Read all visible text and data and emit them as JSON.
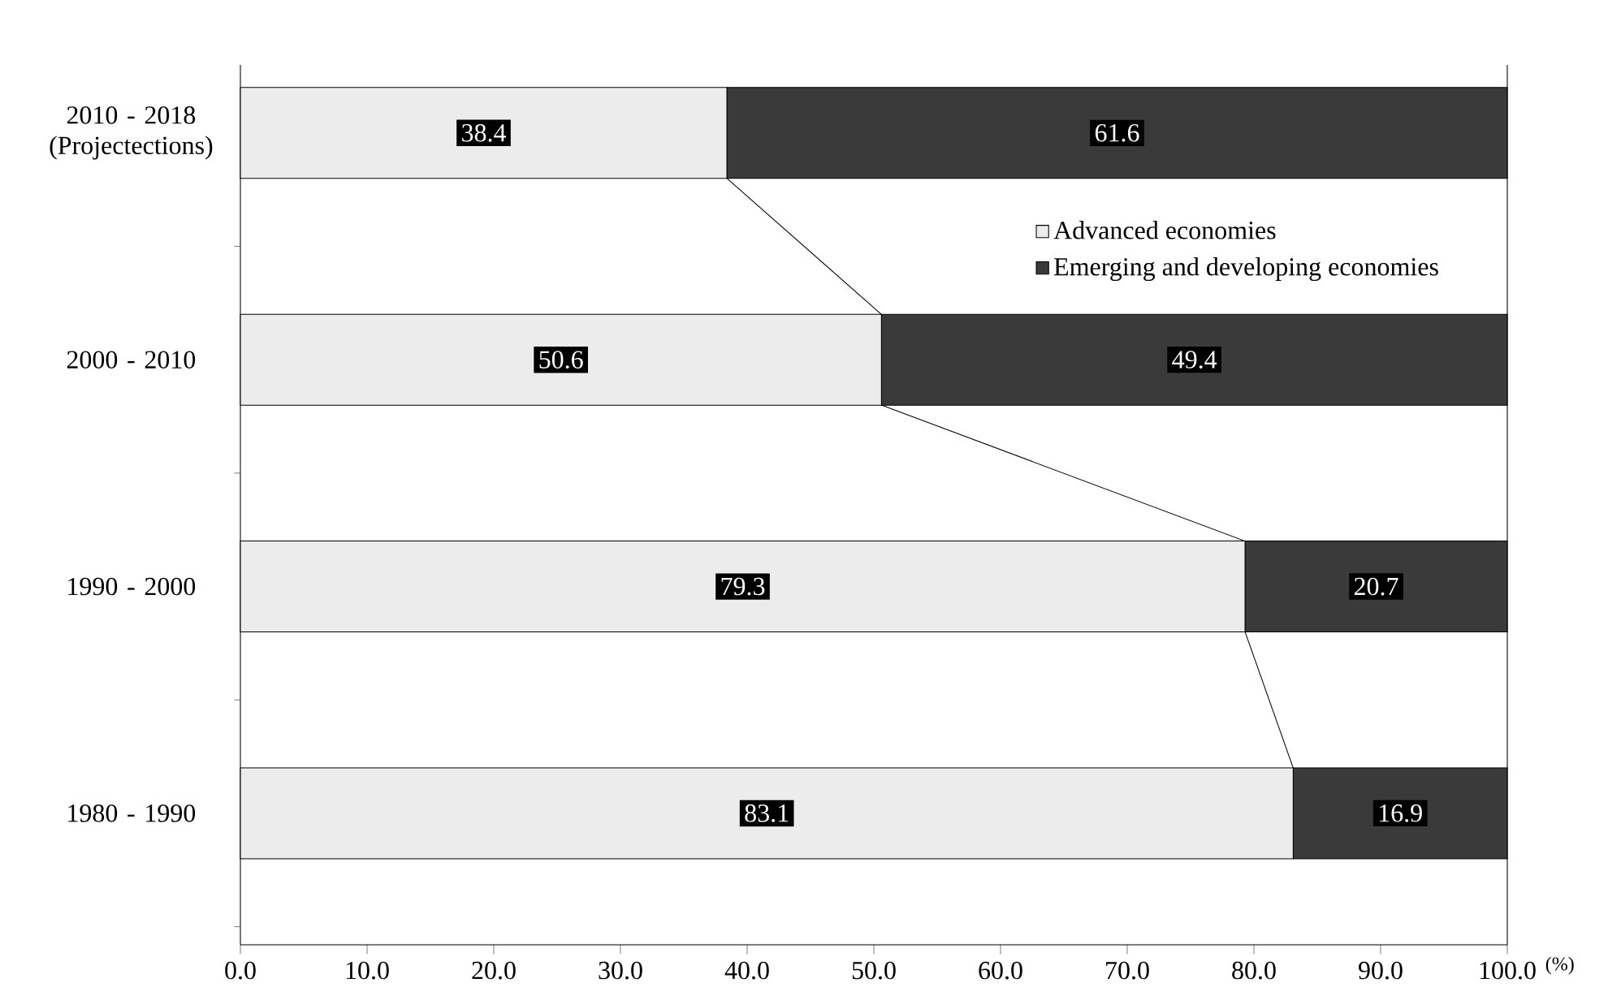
{
  "chart_data": {
    "type": "bar",
    "orientation": "horizontal",
    "stacked": true,
    "legend": "top right",
    "categories": [
      "2010 - 2018 (Projectections)",
      "2000 - 2010",
      "1990 - 2000",
      "1980 - 1990"
    ],
    "series": [
      {
        "name": "Advanced economies",
        "color": "#ececec",
        "values": [
          38.4,
          50.6,
          79.3,
          83.1
        ],
        "value_labels": [
          "38.4",
          "50.6",
          "79.3",
          "83.1"
        ]
      },
      {
        "name": "Emerging and developing economies",
        "color": "#3a3a3a",
        "values": [
          61.6,
          49.4,
          20.7,
          16.9
        ],
        "value_labels": [
          "61.6",
          "49.4",
          "20.7",
          "16.9"
        ]
      }
    ],
    "xlabel": "(%)",
    "xlim": [
      0,
      100
    ],
    "xticks": [
      {
        "value": 0,
        "label": "0.0"
      },
      {
        "value": 10,
        "label": "10.0"
      },
      {
        "value": 20,
        "label": "20.0"
      },
      {
        "value": 30,
        "label": "30.0"
      },
      {
        "value": 40,
        "label": "40.0"
      },
      {
        "value": 50,
        "label": "50.0"
      },
      {
        "value": 60,
        "label": "60.0"
      },
      {
        "value": 70,
        "label": "70.0"
      },
      {
        "value": 80,
        "label": "80.0"
      },
      {
        "value": 90,
        "label": "90.0"
      },
      {
        "value": 100,
        "label": "100.0"
      }
    ]
  }
}
